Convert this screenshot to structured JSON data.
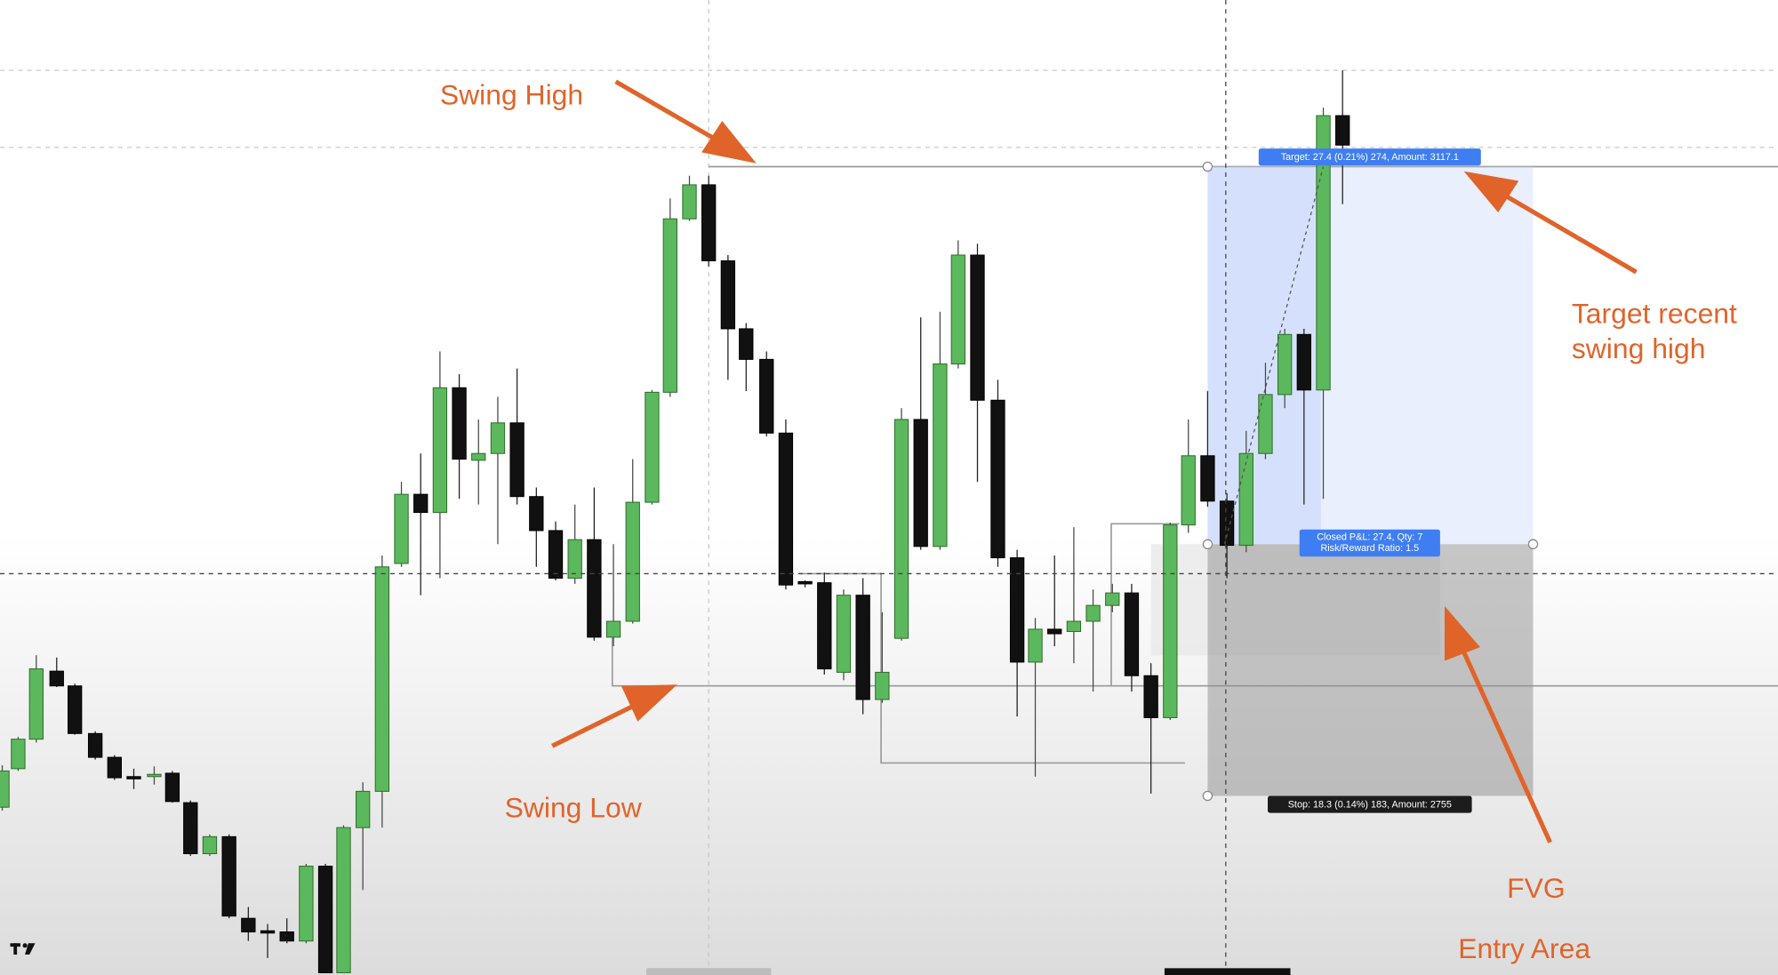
{
  "annotations": {
    "swing_high": "Swing High",
    "swing_low": "Swing Low",
    "target": [
      "Target recent",
      "swing high"
    ],
    "fvg": "FVG",
    "entry_area": "Entry Area"
  },
  "position_tool": {
    "target_label": "Target: 27.4 (0.21%) 274, Amount: 3117.1",
    "pnl_label": [
      "Closed P&L: 27.4, Qty: 7",
      "Risk/Reward Ratio: 1.5"
    ],
    "stop_label": "Stop: 18.3 (0.14%) 183, Amount: 2755"
  }
}
